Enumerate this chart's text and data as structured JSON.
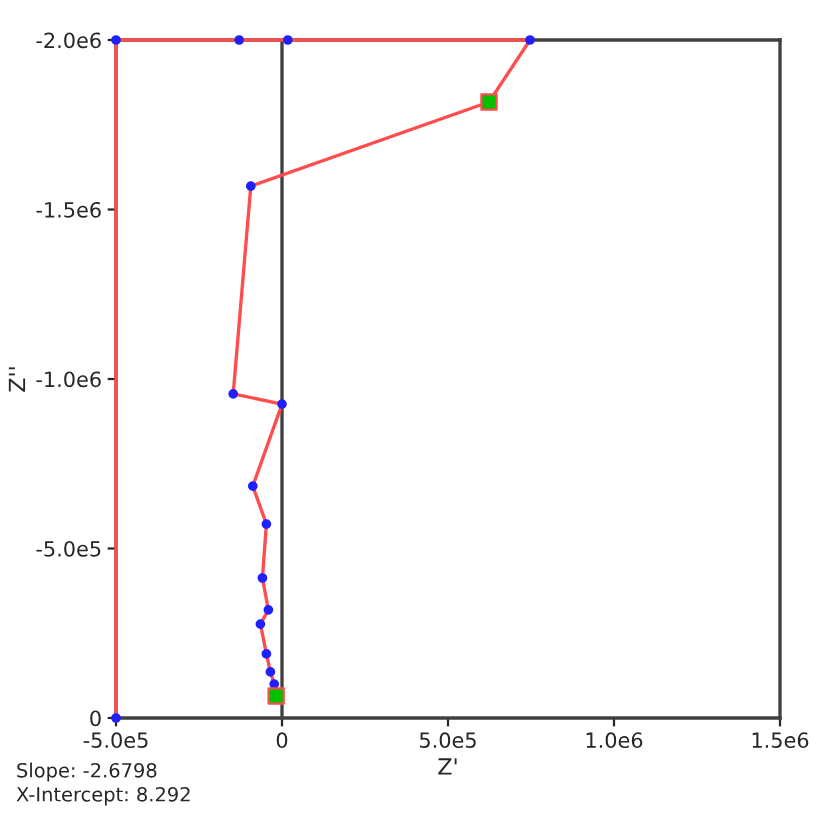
{
  "chart_data": {
    "type": "line",
    "xlabel": "Z'",
    "ylabel": "Z''",
    "series": [
      {
        "color": "#ff4c4c",
        "marker": "circle",
        "x": [
          -17600,
          -23500,
          -35000,
          -47000,
          -65000,
          -41000,
          -59000,
          -47000,
          -88000,
          0,
          -147000,
          -94000,
          623500,
          747000,
          17600,
          -129000,
          -500000,
          -500000
        ],
        "values": [
          -65000,
          -100000,
          -136000,
          -189000,
          -277000,
          -319000,
          -413000,
          -572000,
          -684000,
          -926000,
          -956000,
          -1569000,
          -1817000,
          -2000000,
          -2000000,
          -2000000,
          -2000000,
          0
        ]
      },
      {
        "type": "scatter",
        "color": "#00c000",
        "marker": "square",
        "x": [
          -17600,
          623500
        ],
        "values": [
          -65000,
          -1817000
        ]
      }
    ],
    "xlim": [
      -500000,
      1500000
    ],
    "xticks": [
      {
        "value": -500000,
        "label": "-5.0e5"
      },
      0,
      {
        "value": 500000,
        "label": "5.0e5"
      },
      {
        "value": 1000000,
        "label": "1.0e6"
      },
      {
        "value": 1500000,
        "label": "1.5e6"
      }
    ],
    "ylim": [
      0,
      -2000000
    ],
    "yticks": [
      0,
      {
        "value": -500000,
        "label": "-5.0e5"
      },
      {
        "value": -1000000,
        "label": "-1.0e6"
      },
      {
        "value": -1500000,
        "label": "-1.5e6"
      },
      {
        "value": -2000000,
        "label": "-2.0e6"
      }
    ],
    "ref_lines": [
      {
        "axis": "x",
        "value": 0,
        "color": "#404040"
      }
    ],
    "annotations": [
      "Slope: -2.6798",
      "X-Intercept: 8.292"
    ],
    "grid": false,
    "legend": false
  }
}
